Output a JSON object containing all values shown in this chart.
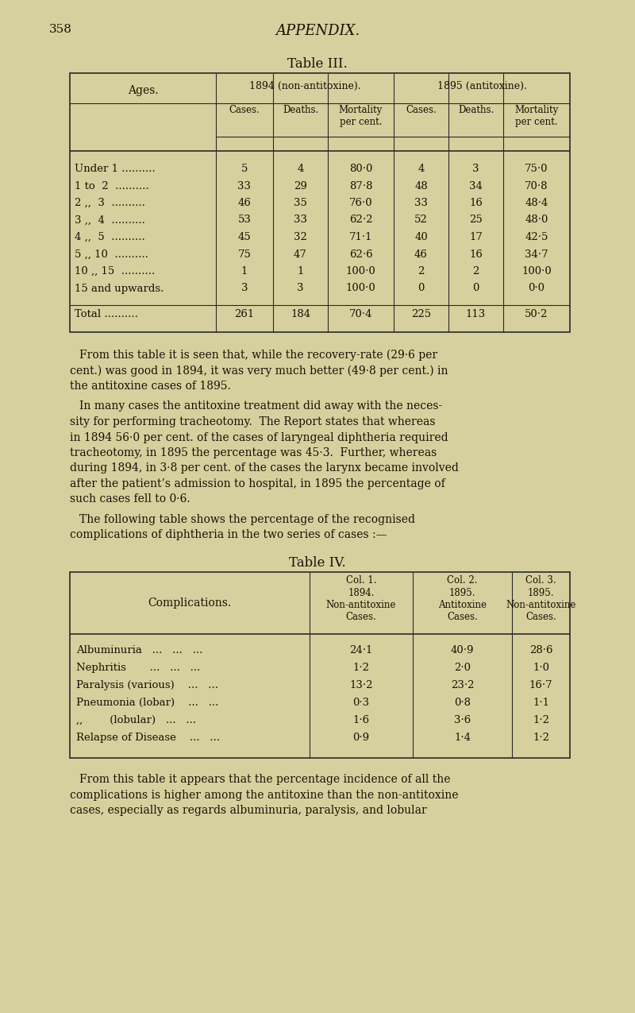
{
  "bg_color": "#d6d09e",
  "page_number": "358",
  "appendix_title": "APPENDIX.",
  "table3_title": "Table III.",
  "table4_title": "Table IV.",
  "table3_ages_header": "Ages.",
  "table3_1894_header": "1894 (non-antitoxine).",
  "table3_1895_header": "1895 (antitoxine).",
  "table3_sub_headers": [
    "Cases.",
    "Deaths.",
    "Mortality\nper cent.",
    "Cases.",
    "Deaths.",
    "Mortality\nper cent."
  ],
  "table3_rows": [
    [
      "Under 1 ..........",
      "5",
      "4",
      "80·0",
      "4",
      "3",
      "75·0"
    ],
    [
      "1 to  2  ..........",
      "33",
      "29",
      "87·8",
      "48",
      "34",
      "70·8"
    ],
    [
      "2 ,,  3  ..........",
      "46",
      "35",
      "76·0",
      "33",
      "16",
      "48·4"
    ],
    [
      "3 ,,  4  ..........",
      "53",
      "33",
      "62·2",
      "52",
      "25",
      "48·0"
    ],
    [
      "4 ,,  5  ..........",
      "45",
      "32",
      "71·1",
      "40",
      "17",
      "42·5"
    ],
    [
      "5 ,, 10  ..........",
      "75",
      "47",
      "62·6",
      "46",
      "16",
      "34·7"
    ],
    [
      "10 ,, 15  ..........",
      "1",
      "1",
      "100·0",
      "2",
      "2",
      "100·0"
    ],
    [
      "15 and upwards.",
      "3",
      "3",
      "100·0",
      "0",
      "0",
      "0·0"
    ]
  ],
  "table3_total": [
    "Total ..........",
    "261",
    "184",
    "70·4",
    "225",
    "113",
    "50·2"
  ],
  "para1_lines": [
    "From this table it is seen that, while the recovery-rate (29·6 per",
    "cent.) was good in 1894, it was very much better (49·8 per cent.) in",
    "the antitoxine cases of 1895."
  ],
  "para2_lines": [
    "In many cases the antitoxine treatment did away with the neces-",
    "sity for performing tracheotomy.  The Report states that whereas",
    "in 1894 56·0 per cent. of the cases of laryngeal diphtheria required",
    "tracheotomy, in 1895 the percentage was 45·3.  Further, whereas",
    "during 1894, in 3·8 per cent. of the cases the larynx became involved",
    "after the patient’s admission to hospital, in 1895 the percentage of",
    "such cases fell to 0·6."
  ],
  "para3_lines": [
    "The following table shows the percentage of the recognised",
    "complications of diphtheria in the two series of cases :—"
  ],
  "table4_complications_header": "Complications.",
  "table4_col_headers": [
    "Col. 1.\n1894.\nNon-antitoxine\nCases.",
    "Col. 2.\n1895.\nAntitoxine\nCases.",
    "Col. 3.\n1895.\nNon-antitoxine\nCases."
  ],
  "table4_rows": [
    [
      "Albuminuria   ...   ...   ...",
      "24·1",
      "40·9",
      "28·6"
    ],
    [
      "Nephritis       ...   ...   ...",
      "1·2",
      "2·0",
      "1·0"
    ],
    [
      "Paralysis (various)    ...   ...",
      "13·2",
      "23·2",
      "16·7"
    ],
    [
      "Pneumonia (lobar)    ...   ...",
      "0·3",
      "0·8",
      "1·1"
    ],
    [
      ",,        (lobular)   ...   ...",
      "1·6",
      "3·6",
      "1·2"
    ],
    [
      "Relapse of Disease    ...   ...",
      "0·9",
      "1·4",
      "1·2"
    ]
  ],
  "para4_lines": [
    "From this table it appears that the percentage incidence of all the",
    "complications is higher among the antitoxine than the non-antitoxine",
    "cases, especially as regards albuminuria, paralysis, and lobular"
  ]
}
